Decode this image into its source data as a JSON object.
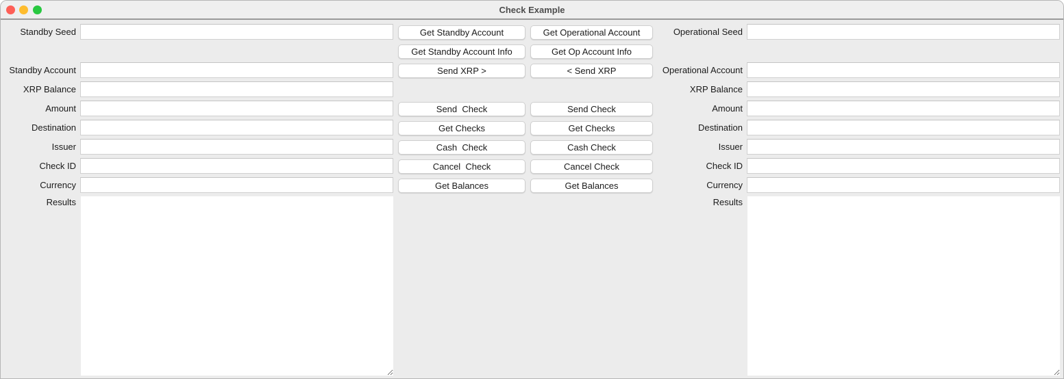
{
  "window": {
    "title": "Check Example",
    "controls": {
      "close_color": "#fe5f57",
      "minimize_color": "#febc2e",
      "maximize_color": "#28c840"
    }
  },
  "standby": {
    "labels": {
      "seed": "Standby Seed",
      "account": "Standby Account",
      "balance": "XRP Balance",
      "amount": "Amount",
      "destination": "Destination",
      "issuer": "Issuer",
      "check_id": "Check ID",
      "currency": "Currency",
      "results": "Results"
    },
    "values": {
      "seed": "",
      "account": "",
      "balance": "",
      "amount": "",
      "destination": "",
      "issuer": "",
      "check_id": "",
      "currency": "",
      "results": ""
    }
  },
  "operational": {
    "labels": {
      "seed": "Operational Seed",
      "account": "Operational Account",
      "balance": "XRP Balance",
      "amount": "Amount",
      "destination": "Destination",
      "issuer": "Issuer",
      "check_id": "Check ID",
      "currency": "Currency",
      "results": "Results"
    },
    "values": {
      "seed": "",
      "account": "",
      "balance": "",
      "amount": "",
      "destination": "",
      "issuer": "",
      "check_id": "",
      "currency": "",
      "results": ""
    }
  },
  "buttons": {
    "standby": {
      "get_account": "Get Standby Account",
      "get_info": "Get Standby Account Info",
      "send_xrp": "Send XRP >",
      "send_check": "Send  Check",
      "get_checks": "Get Checks",
      "cash_check": "Cash  Check",
      "cancel_check": "Cancel  Check",
      "get_balances": "Get Balances"
    },
    "operational": {
      "get_account": "Get Operational Account",
      "get_info": "Get Op Account Info",
      "send_xrp": "< Send XRP",
      "send_check": "Send Check",
      "get_checks": "Get Checks",
      "cash_check": "Cash Check",
      "cancel_check": "Cancel Check",
      "get_balances": "Get Balances"
    }
  }
}
